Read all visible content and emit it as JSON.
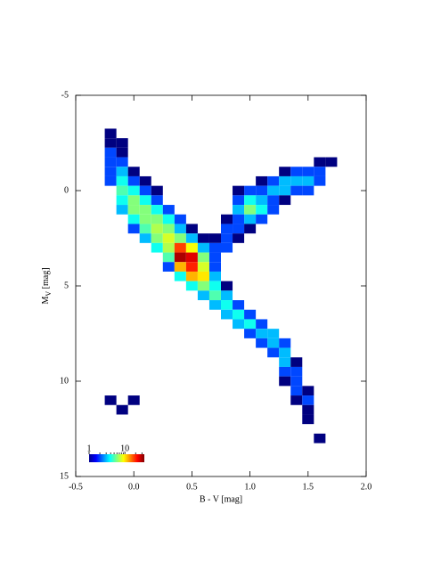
{
  "chart_data": {
    "type": "density",
    "xlabel": "B - V [mag]",
    "ylabel": [
      "M",
      "V",
      " [mag]"
    ],
    "xlim": [
      -0.5,
      2.0
    ],
    "xticks": [
      -0.5,
      {
        "value": 0,
        "label": "0.0"
      },
      0.5,
      {
        "value": 1,
        "label": "1.0"
      },
      1.5,
      {
        "value": 2,
        "label": "2.0"
      }
    ],
    "ylim": [
      -5,
      15
    ],
    "yinverted": true,
    "yticks": [
      -5,
      0,
      5,
      10,
      15
    ],
    "bin_width": 0.1,
    "bin_height": 0.5,
    "colormap": "jet",
    "colorbar": {
      "range": [
        1,
        35
      ],
      "log": true,
      "ticks": [
        1,
        10
      ],
      "minor_ticks": [
        2,
        3,
        4,
        5,
        6,
        7,
        8,
        9,
        20,
        30
      ]
    },
    "rows": [
      {
        "y": -3,
        "x": [
          -0.2
        ],
        "counts": [
          1
        ]
      },
      {
        "y": -2.5,
        "x": [
          -0.2,
          -0.1
        ],
        "counts": [
          1,
          1
        ]
      },
      {
        "y": -2,
        "x": [
          -0.2,
          -0.1
        ],
        "counts": [
          2,
          1
        ]
      },
      {
        "y": -1.5,
        "x": [
          -0.2,
          -0.1,
          1.6,
          1.7
        ],
        "counts": [
          2,
          2,
          1,
          1
        ]
      },
      {
        "y": -1,
        "x": [
          -0.2,
          -0.1,
          0.0,
          1.3,
          1.4,
          1.5,
          1.6
        ],
        "counts": [
          2,
          3,
          1,
          1,
          2,
          2,
          2
        ]
      },
      {
        "y": -0.5,
        "x": [
          -0.2,
          -0.1,
          0.0,
          0.1,
          1.1,
          1.2,
          1.3,
          1.4,
          1.5,
          1.6
        ],
        "counts": [
          2,
          4,
          2,
          1,
          1,
          2,
          3,
          3,
          3,
          2
        ]
      },
      {
        "y": 0,
        "x": [
          -0.1,
          0.0,
          0.1,
          0.2,
          0.9,
          1.0,
          1.1,
          1.2,
          1.3,
          1.4,
          1.5
        ],
        "counts": [
          5,
          4,
          2,
          1,
          1,
          2,
          2,
          3,
          3,
          2,
          2
        ]
      },
      {
        "y": 0.5,
        "x": [
          -0.1,
          0.0,
          0.1,
          0.2,
          0.9,
          1.0,
          1.1,
          1.2,
          1.3
        ],
        "counts": [
          4,
          6,
          4,
          2,
          2,
          4,
          3,
          2,
          1
        ]
      },
      {
        "y": 1,
        "x": [
          -0.1,
          0.0,
          0.1,
          0.2,
          0.3,
          0.9,
          1.0,
          1.1,
          1.2
        ],
        "counts": [
          3,
          6,
          6,
          4,
          2,
          3,
          6,
          4,
          2
        ]
      },
      {
        "y": 1.5,
        "x": [
          0.0,
          0.1,
          0.2,
          0.3,
          0.4,
          0.8,
          0.9,
          1.0,
          1.1
        ],
        "counts": [
          4,
          6,
          6,
          4,
          2,
          1,
          2,
          3,
          2
        ]
      },
      {
        "y": 2,
        "x": [
          0.0,
          0.1,
          0.2,
          0.3,
          0.4,
          0.5,
          0.8,
          0.9,
          1.0
        ],
        "counts": [
          2,
          5,
          7,
          6,
          3,
          1,
          2,
          2,
          1
        ]
      },
      {
        "y": 2.5,
        "x": [
          0.1,
          0.2,
          0.3,
          0.4,
          0.5,
          0.6,
          0.7,
          0.8,
          0.9
        ],
        "counts": [
          3,
          6,
          8,
          6,
          3,
          1,
          1,
          2,
          1
        ]
      },
      {
        "y": 3,
        "x": [
          0.2,
          0.3,
          0.4,
          0.5,
          0.6,
          0.7,
          0.8
        ],
        "counts": [
          4,
          7,
          18,
          9,
          3,
          2,
          2
        ]
      },
      {
        "y": 3.5,
        "x": [
          0.3,
          0.4,
          0.5,
          0.6,
          0.7
        ],
        "counts": [
          5,
          30,
          25,
          6,
          2
        ]
      },
      {
        "y": 4,
        "x": [
          0.3,
          0.4,
          0.5,
          0.6,
          0.7
        ],
        "counts": [
          2,
          12,
          20,
          8,
          2
        ]
      },
      {
        "y": 4.5,
        "x": [
          0.4,
          0.5,
          0.6,
          0.7
        ],
        "counts": [
          4,
          12,
          10,
          3
        ]
      },
      {
        "y": 5,
        "x": [
          0.5,
          0.6,
          0.7,
          0.8
        ],
        "counts": [
          4,
          6,
          4,
          1
        ]
      },
      {
        "y": 5.5,
        "x": [
          0.6,
          0.7,
          0.8
        ],
        "counts": [
          3,
          5,
          3
        ]
      },
      {
        "y": 6,
        "x": [
          0.7,
          0.8,
          0.9
        ],
        "counts": [
          3,
          4,
          2
        ]
      },
      {
        "y": 6.5,
        "x": [
          0.8,
          0.9,
          1.0
        ],
        "counts": [
          3,
          4,
          2
        ]
      },
      {
        "y": 7,
        "x": [
          0.9,
          1.0,
          1.1
        ],
        "counts": [
          3,
          4,
          2
        ]
      },
      {
        "y": 7.5,
        "x": [
          1.0,
          1.1,
          1.2
        ],
        "counts": [
          2,
          3,
          3
        ]
      },
      {
        "y": 8,
        "x": [
          1.1,
          1.2,
          1.3
        ],
        "counts": [
          2,
          3,
          2
        ]
      },
      {
        "y": 8.5,
        "x": [
          1.2,
          1.3
        ],
        "counts": [
          2,
          3
        ]
      },
      {
        "y": 9,
        "x": [
          1.3,
          1.4
        ],
        "counts": [
          3,
          1
        ]
      },
      {
        "y": 9.5,
        "x": [
          1.3,
          1.4
        ],
        "counts": [
          2,
          2
        ]
      },
      {
        "y": 10,
        "x": [
          1.3,
          1.4
        ],
        "counts": [
          1,
          2
        ]
      },
      {
        "y": 10.5,
        "x": [
          1.4,
          1.5
        ],
        "counts": [
          2,
          1
        ]
      },
      {
        "y": 11,
        "x": [
          -0.2,
          0.0,
          1.4,
          1.5
        ],
        "counts": [
          1,
          1,
          1,
          2
        ]
      },
      {
        "y": 11.5,
        "x": [
          -0.1,
          1.5
        ],
        "counts": [
          1,
          1
        ]
      },
      {
        "y": 12,
        "x": [
          1.5
        ],
        "counts": [
          1
        ]
      },
      {
        "y": 13,
        "x": [
          1.6
        ],
        "counts": [
          1
        ]
      }
    ]
  }
}
